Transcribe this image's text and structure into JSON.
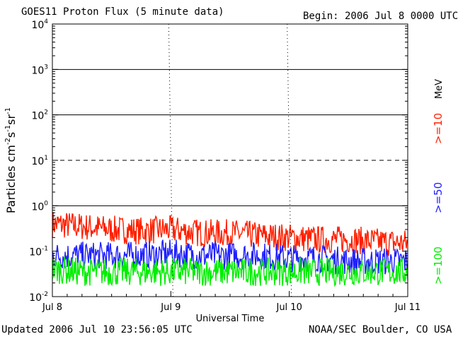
{
  "header": {
    "title": "GOES11 Proton Flux (5 minute data)",
    "begin": "Begin: 2006 Jul 8 0000 UTC"
  },
  "footer": {
    "updated": "Updated 2006 Jul 10 23:56:05 UTC",
    "credit": "NOAA/SEC Boulder, CO USA"
  },
  "chart_data": {
    "type": "line",
    "title": "GOES11 Proton Flux (5 minute data)",
    "xlabel": "Universal Time",
    "ylabel_parts": [
      "Particles cm",
      "-2",
      "s",
      "-1",
      "sr",
      "-1"
    ],
    "y_scale": "log",
    "ylim": [
      0.01,
      10000
    ],
    "y_ticks": [
      {
        "value": 0.01,
        "base": "10",
        "exp": "-2"
      },
      {
        "value": 0.1,
        "base": "10",
        "exp": "-1"
      },
      {
        "value": 1,
        "base": "10",
        "exp": "0"
      },
      {
        "value": 10,
        "base": "10",
        "exp": "1"
      },
      {
        "value": 100,
        "base": "10",
        "exp": "2"
      },
      {
        "value": 1000,
        "base": "10",
        "exp": "3"
      },
      {
        "value": 10000,
        "base": "10",
        "exp": "4"
      }
    ],
    "x_ticks": [
      {
        "value": 0,
        "label": "Jul 8"
      },
      {
        "value": 1,
        "label": "Jul 9"
      },
      {
        "value": 2,
        "label": "Jul 10"
      },
      {
        "value": 3,
        "label": "Jul 11"
      }
    ],
    "x_unit": "days from 2006 Jul 8 0000 UTC",
    "xlim": [
      0,
      3
    ],
    "threshold_lines": [
      {
        "value": 10,
        "style": "dashed"
      },
      {
        "value": 1,
        "style": "solid"
      },
      {
        "value": 100,
        "style": "solid"
      },
      {
        "value": 1000,
        "style": "solid"
      }
    ],
    "units_label": "MeV",
    "series": [
      {
        "name": ">=10",
        "color": "#ff2000",
        "x": [
          0,
          0.25,
          0.5,
          0.75,
          1.0,
          1.25,
          1.5,
          1.75,
          2.0,
          2.25,
          2.5,
          2.75,
          3.0
        ],
        "values": [
          0.4,
          0.35,
          0.3,
          0.28,
          0.3,
          0.25,
          0.25,
          0.22,
          0.2,
          0.18,
          0.18,
          0.16,
          0.15
        ]
      },
      {
        "name": ">=50",
        "color": "#2020ff",
        "x": [
          0,
          0.25,
          0.5,
          0.75,
          1.0,
          1.25,
          1.5,
          1.75,
          2.0,
          2.25,
          2.5,
          2.75,
          3.0
        ],
        "values": [
          0.08,
          0.08,
          0.08,
          0.08,
          0.09,
          0.08,
          0.08,
          0.08,
          0.07,
          0.07,
          0.06,
          0.06,
          0.06
        ]
      },
      {
        "name": ">=100",
        "color": "#00ee00",
        "x": [
          0,
          0.25,
          0.5,
          0.75,
          1.0,
          1.25,
          1.5,
          1.75,
          2.0,
          2.25,
          2.5,
          2.75,
          3.0
        ],
        "values": [
          0.04,
          0.035,
          0.035,
          0.035,
          0.035,
          0.035,
          0.035,
          0.035,
          0.035,
          0.035,
          0.035,
          0.035,
          0.035
        ]
      }
    ]
  }
}
